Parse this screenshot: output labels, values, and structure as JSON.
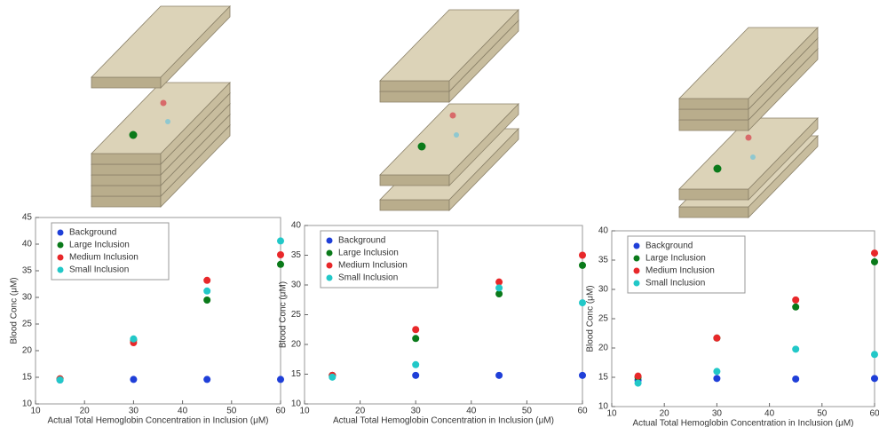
{
  "chart_data": [
    {
      "type": "scatter",
      "y_label": "Blood Conc (μM)",
      "x_label": "Actual Total Hemoglobin Concentration in Inclusion (μM)",
      "x": [
        15,
        30,
        45,
        60
      ],
      "xlim": [
        10,
        60
      ],
      "xticks": [
        10,
        20,
        30,
        40,
        50,
        60
      ],
      "ylim": [
        10,
        45
      ],
      "yticks": [
        10,
        15,
        20,
        25,
        30,
        35,
        40,
        45
      ],
      "legend": "upper left",
      "series": [
        {
          "name": "Background",
          "color": "#1f3fd8",
          "values": [
            14.5,
            14.6,
            14.6,
            14.6
          ]
        },
        {
          "name": "Large Inclusion",
          "color": "#0a7a1a",
          "values": [
            14.7,
            22.0,
            29.5,
            36.2
          ]
        },
        {
          "name": "Medium Inclusion",
          "color": "#e8282a",
          "values": [
            14.7,
            21.5,
            33.2,
            38.0
          ]
        },
        {
          "name": "Small Inclusion",
          "color": "#22c8c8",
          "values": [
            14.5,
            22.2,
            31.2,
            40.6
          ]
        }
      ]
    },
    {
      "type": "scatter",
      "y_label": "Blood Conc (μM)",
      "x_label": "Actual Total Hemoglobin Concentration in Inclusion (μM)",
      "x": [
        15,
        30,
        45,
        60
      ],
      "xlim": [
        10,
        60
      ],
      "xticks": [
        10,
        20,
        30,
        40,
        50,
        60
      ],
      "ylim": [
        10,
        40
      ],
      "yticks": [
        10,
        15,
        20,
        25,
        30,
        35,
        40
      ],
      "legend": "upper left",
      "series": [
        {
          "name": "Background",
          "color": "#1f3fd8",
          "values": [
            14.8,
            14.8,
            14.8,
            14.8
          ]
        },
        {
          "name": "Large Inclusion",
          "color": "#0a7a1a",
          "values": [
            14.8,
            21.0,
            28.5,
            33.3
          ]
        },
        {
          "name": "Medium Inclusion",
          "color": "#e8282a",
          "values": [
            14.8,
            22.5,
            30.5,
            35.0
          ]
        },
        {
          "name": "Small Inclusion",
          "color": "#22c8c8",
          "values": [
            14.5,
            16.6,
            29.5,
            27.0
          ]
        }
      ]
    },
    {
      "type": "scatter",
      "y_label": "Blood Conc (μM)",
      "x_label": "Actual Total Hemoglobin Concentration in Inclusion (μM)",
      "x": [
        15,
        30,
        45,
        60
      ],
      "xlim": [
        10,
        60
      ],
      "xticks": [
        10,
        20,
        30,
        40,
        50,
        60
      ],
      "ylim": [
        10,
        40
      ],
      "yticks": [
        10,
        15,
        20,
        25,
        30,
        35,
        40
      ],
      "legend": "upper left",
      "series": [
        {
          "name": "Background",
          "color": "#1f3fd8",
          "values": [
            14.5,
            14.8,
            14.7,
            14.8
          ]
        },
        {
          "name": "Large Inclusion",
          "color": "#0a7a1a",
          "values": [
            15.0,
            21.7,
            27.0,
            34.7
          ]
        },
        {
          "name": "Medium Inclusion",
          "color": "#e8282a",
          "values": [
            15.2,
            21.7,
            28.2,
            36.2
          ]
        },
        {
          "name": "Small Inclusion",
          "color": "#22c8c8",
          "values": [
            14.0,
            16.0,
            19.8,
            18.9
          ]
        }
      ]
    }
  ]
}
